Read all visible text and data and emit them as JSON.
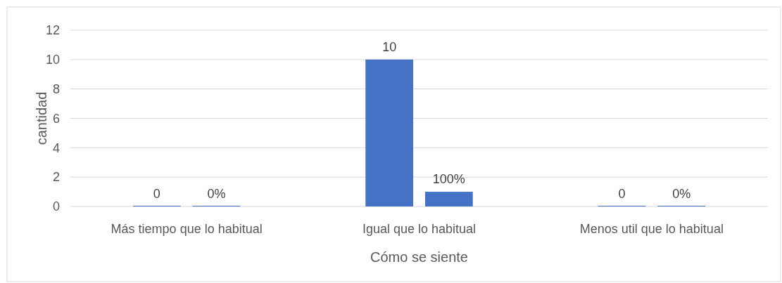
{
  "chart_data": {
    "type": "bar",
    "xlabel": "Cómo se siente",
    "ylabel": "cantidad",
    "categories": [
      "Más tiempo que lo habitual",
      "Igual que lo habitual",
      "Menos util que lo habitual"
    ],
    "series": [
      {
        "color": "#4472c4",
        "values": [
          0,
          10,
          0
        ],
        "value_labels": [
          "0",
          "10",
          "0"
        ]
      },
      {
        "color": "#4472c4",
        "values": [
          0,
          1,
          0
        ],
        "value_labels": [
          "0%",
          "100%",
          "0%"
        ]
      }
    ],
    "ylim": [
      0,
      12
    ],
    "yticks": [
      0,
      2,
      4,
      6,
      8,
      10,
      12
    ],
    "grid": "y"
  }
}
